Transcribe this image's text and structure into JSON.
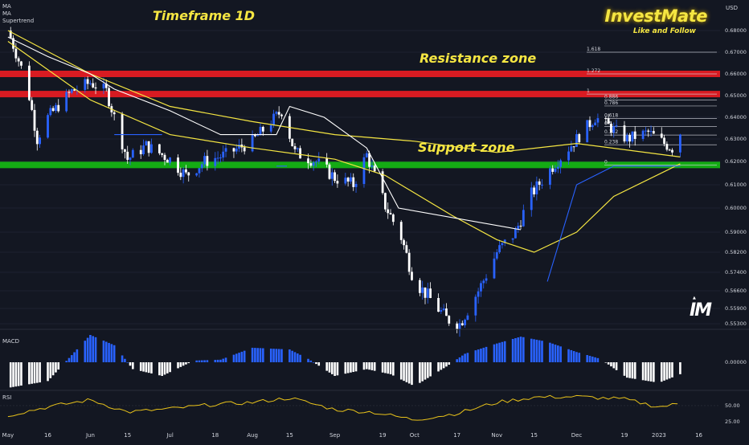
{
  "currency": "USD",
  "indicator_labels": [
    "MA",
    "MA",
    "Supertrend"
  ],
  "annotations": {
    "timeframe": "Timeframe 1D",
    "resistance": "Resistance zone",
    "support": "Support zone"
  },
  "brand": {
    "title": "InvestMate",
    "subtitle": "Like and Follow",
    "logo": "IM"
  },
  "colors": {
    "background": "#131722",
    "bull_candle": "#2962ff",
    "bear_candle": "#ffffff",
    "ma": "#f5e642",
    "supertrend_down": "#ffffff",
    "supertrend_up": "#2962ff",
    "resistance": "#e31b23",
    "support": "#14b314",
    "rsi": "#e8c21a"
  },
  "chart_data": [
    {
      "type": "candlestick",
      "title": "Timeframe 1D",
      "y_unit": "USD",
      "y_ticks": [
        0.68,
        0.67,
        0.66,
        0.65,
        0.64,
        0.63,
        0.62,
        0.61,
        0.6,
        0.59,
        0.582,
        0.574,
        0.566,
        0.559,
        0.553
      ],
      "y_tick_labels": [
        "0.68000",
        "0.67000",
        "0.66000",
        "0.65000",
        "0.64000",
        "0.63000",
        "0.62000",
        "0.61000",
        "0.60000",
        "0.59000",
        "0.58200",
        "0.57400",
        "0.56600",
        "0.55900",
        "0.55300"
      ],
      "x_ticks": [
        "May",
        "16",
        "Jun",
        "15",
        "Jul",
        "18",
        "Aug",
        "15",
        "Sep",
        "19",
        "Oct",
        "17",
        "Nov",
        "15",
        "Dec",
        "19",
        "2023",
        "16"
      ],
      "price_path": [
        [
          "2022-05-01",
          0.68
        ],
        [
          "2022-05-08",
          0.656
        ],
        [
          "2022-05-12",
          0.63
        ],
        [
          "2022-05-16",
          0.64
        ],
        [
          "2022-05-25",
          0.652
        ],
        [
          "2022-06-01",
          0.656
        ],
        [
          "2022-06-07",
          0.652
        ],
        [
          "2022-06-12",
          0.632
        ],
        [
          "2022-06-15",
          0.621
        ],
        [
          "2022-06-22",
          0.627
        ],
        [
          "2022-07-01",
          0.621
        ],
        [
          "2022-07-07",
          0.614
        ],
        [
          "2022-07-14",
          0.62
        ],
        [
          "2022-07-22",
          0.623
        ],
        [
          "2022-08-01",
          0.629
        ],
        [
          "2022-08-12",
          0.643
        ],
        [
          "2022-08-17",
          0.624
        ],
        [
          "2022-08-25",
          0.62
        ],
        [
          "2022-09-01",
          0.613
        ],
        [
          "2022-09-08",
          0.61
        ],
        [
          "2022-09-13",
          0.623
        ],
        [
          "2022-09-20",
          0.601
        ],
        [
          "2022-09-26",
          0.588
        ],
        [
          "2022-10-01",
          0.57
        ],
        [
          "2022-10-06",
          0.564
        ],
        [
          "2022-10-13",
          0.555
        ],
        [
          "2022-10-18",
          0.553
        ],
        [
          "2022-10-25",
          0.566
        ],
        [
          "2022-11-01",
          0.582
        ],
        [
          "2022-11-08",
          0.59
        ],
        [
          "2022-11-14",
          0.606
        ],
        [
          "2022-11-22",
          0.618
        ],
        [
          "2022-12-01",
          0.63
        ],
        [
          "2022-12-08",
          0.64
        ],
        [
          "2022-12-13",
          0.636
        ],
        [
          "2022-12-20",
          0.63
        ],
        [
          "2022-12-28",
          0.633
        ],
        [
          "2023-01-03",
          0.628
        ],
        [
          "2023-01-06",
          0.626
        ],
        [
          "2023-01-09",
          0.633
        ]
      ],
      "moving_average": [
        [
          "2022-05-01",
          0.68
        ],
        [
          "2022-06-01",
          0.66
        ],
        [
          "2022-07-01",
          0.645
        ],
        [
          "2022-08-01",
          0.638
        ],
        [
          "2022-09-01",
          0.632
        ],
        [
          "2022-10-01",
          0.629
        ],
        [
          "2022-11-01",
          0.624
        ],
        [
          "2022-12-01",
          0.628
        ],
        [
          "2023-01-09",
          0.622
        ]
      ],
      "moving_average_2": [
        [
          "2022-05-01",
          0.675
        ],
        [
          "2022-06-01",
          0.648
        ],
        [
          "2022-07-01",
          0.632
        ],
        [
          "2022-08-01",
          0.626
        ],
        [
          "2022-09-01",
          0.621
        ],
        [
          "2022-09-20",
          0.614
        ],
        [
          "2022-10-15",
          0.597
        ],
        [
          "2022-11-01",
          0.587
        ],
        [
          "2022-11-15",
          0.582
        ],
        [
          "2022-12-01",
          0.59
        ],
        [
          "2022-12-15",
          0.605
        ],
        [
          "2023-01-09",
          0.619
        ]
      ],
      "supertrend": [
        [
          "2022-05-01",
          0.677
        ],
        [
          "2022-05-16",
          0.668
        ],
        [
          "2022-06-01",
          0.66
        ],
        [
          "2022-06-10",
          0.653
        ],
        [
          "2022-07-01",
          0.643
        ],
        [
          "2022-07-20",
          0.632
        ],
        [
          "2022-08-10",
          0.632
        ],
        [
          "2022-08-15",
          0.645
        ],
        [
          "2022-08-28",
          0.64
        ],
        [
          "2022-09-13",
          0.626
        ],
        [
          "2022-09-25",
          0.6
        ],
        [
          "2022-11-10",
          0.591
        ],
        [
          "2022-11-20",
          0.57
        ],
        [
          "2022-12-01",
          0.61
        ],
        [
          "2022-12-15",
          0.618
        ],
        [
          "2023-01-09",
          0.618
        ]
      ],
      "levels": {
        "resistance_zones": [
          0.66,
          0.6507
        ],
        "support_zone": 0.6185,
        "fibonacci": [
          {
            "label": "1.618",
            "value": 0.67
          },
          {
            "label": "1.272",
            "value": 0.66
          },
          {
            "label": "1",
            "value": 0.6507
          },
          {
            "label": "0.886",
            "value": 0.648
          },
          {
            "label": "0.786",
            "value": 0.6452
          },
          {
            "label": "0.618",
            "value": 0.6395
          },
          {
            "label": "0.5",
            "value": 0.6358
          },
          {
            "label": "0.382",
            "value": 0.6318
          },
          {
            "label": "0.238",
            "value": 0.6274
          },
          {
            "label": "0",
            "value": 0.6185
          }
        ]
      }
    },
    {
      "type": "bar",
      "title": "MACD",
      "y_ticks": [
        "0.00000"
      ],
      "histogram": [
        [
          "2022-05-01",
          -0.003
        ],
        [
          "2022-05-16",
          -0.0022
        ],
        [
          "2022-05-24",
          0.0005
        ],
        [
          "2022-06-01",
          0.0032
        ],
        [
          "2022-06-10",
          0.002
        ],
        [
          "2022-06-17",
          -0.0008
        ],
        [
          "2022-06-28",
          -0.0016
        ],
        [
          "2022-07-10",
          0.0002
        ],
        [
          "2022-07-20",
          0.0003
        ],
        [
          "2022-08-01",
          0.0017
        ],
        [
          "2022-08-15",
          0.0015
        ],
        [
          "2022-08-22",
          0.0004
        ],
        [
          "2022-09-01",
          -0.0016
        ],
        [
          "2022-09-13",
          -0.0008
        ],
        [
          "2022-09-22",
          -0.0014
        ],
        [
          "2022-10-01",
          -0.0028
        ],
        [
          "2022-10-13",
          -0.0005
        ],
        [
          "2022-10-20",
          0.001
        ],
        [
          "2022-11-01",
          0.0022
        ],
        [
          "2022-11-10",
          0.003
        ],
        [
          "2022-11-20",
          0.0024
        ],
        [
          "2022-12-01",
          0.0012
        ],
        [
          "2022-12-10",
          0.0004
        ],
        [
          "2022-12-20",
          -0.0018
        ],
        [
          "2023-01-01",
          -0.0024
        ],
        [
          "2023-01-09",
          -0.0014
        ]
      ]
    },
    {
      "type": "line",
      "title": "RSI",
      "y_ticks": [
        "50.00",
        "25.00"
      ],
      "values": [
        [
          "2022-05-01",
          35
        ],
        [
          "2022-05-16",
          48
        ],
        [
          "2022-06-01",
          59
        ],
        [
          "2022-06-15",
          40
        ],
        [
          "2022-07-01",
          45
        ],
        [
          "2022-07-18",
          52
        ],
        [
          "2022-08-01",
          55
        ],
        [
          "2022-08-15",
          62
        ],
        [
          "2022-09-01",
          44
        ],
        [
          "2022-09-15",
          40
        ],
        [
          "2022-10-01",
          28
        ],
        [
          "2022-10-17",
          38
        ],
        [
          "2022-11-01",
          55
        ],
        [
          "2022-11-15",
          63
        ],
        [
          "2022-12-01",
          64
        ],
        [
          "2022-12-19",
          60
        ],
        [
          "2023-01-01",
          48
        ],
        [
          "2023-01-09",
          53
        ]
      ]
    }
  ]
}
